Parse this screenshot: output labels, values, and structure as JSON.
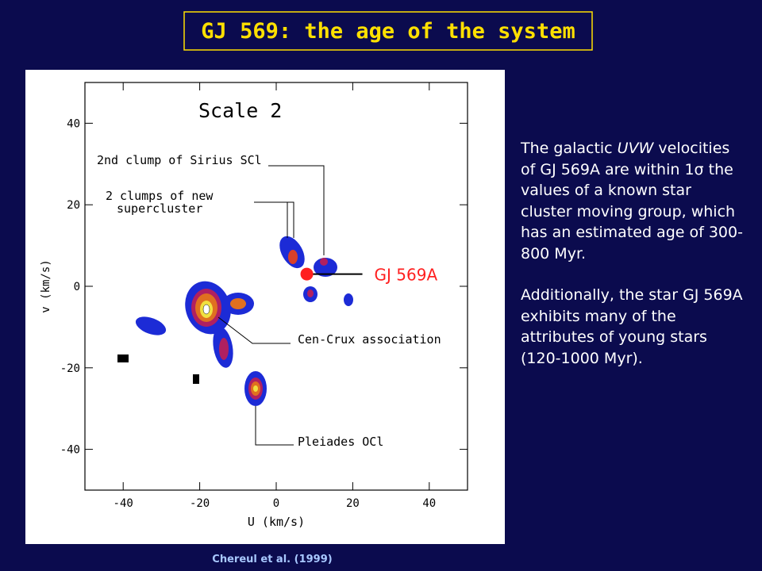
{
  "title": "GJ 569: the age of the system",
  "figure": {
    "panel_title": "Scale 2",
    "x_label": "U (km/s)",
    "y_label": "v (km/s)",
    "xlim": [
      -50,
      50
    ],
    "ylim": [
      -50,
      50
    ],
    "xticks": [
      -40,
      -20,
      0,
      20,
      40
    ],
    "yticks": [
      -40,
      -20,
      0,
      20,
      40
    ],
    "annotations": [
      "2nd clump of Sirius SCl",
      "2 clumps of new",
      "supercluster",
      "Cen-Crux association",
      "Pleiades OCl"
    ],
    "marker": {
      "label": "GJ 569A",
      "x": 8,
      "y": 3,
      "color": "#ff2020"
    }
  },
  "caption": "Chereul et al. (1999)",
  "text": {
    "paragraph_1": [
      "The galactic ",
      "UVW",
      " velocities of GJ 569A are within 1",
      "σ",
      " the values of a known star cluster moving group, which has an estimated age of 300-800 Myr."
    ],
    "paragraph_2": "Additionally, the star GJ 569A exhibits many of the attributes of young stars (120-1000 Myr)."
  }
}
